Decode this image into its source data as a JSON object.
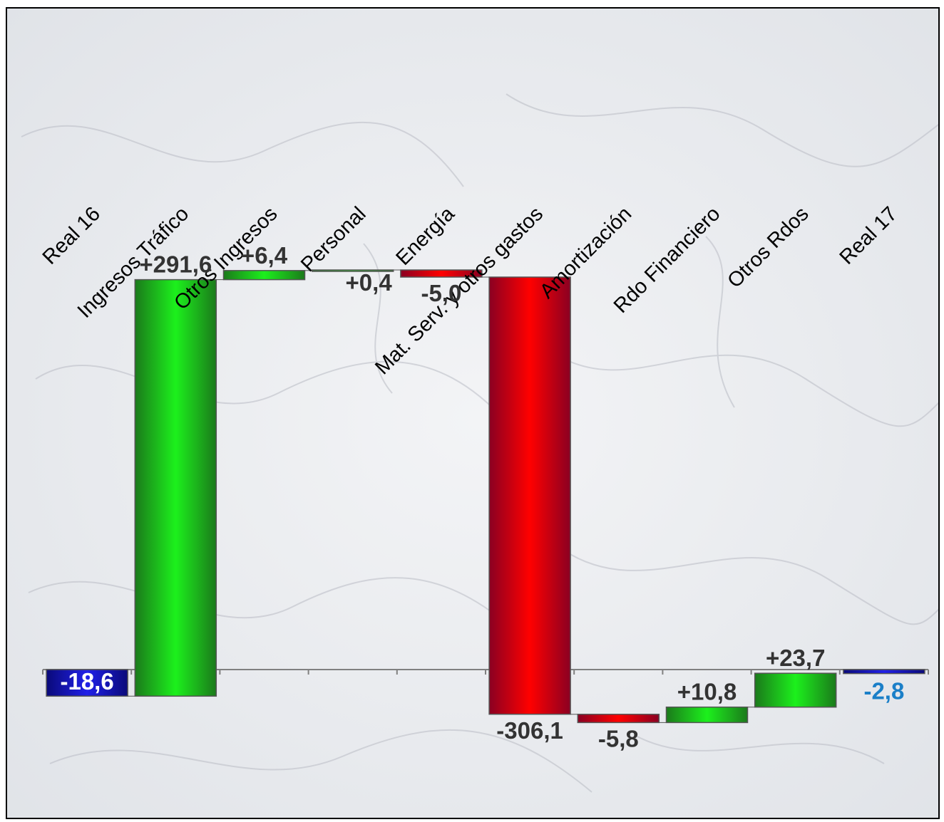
{
  "chart_data": {
    "type": "bar",
    "subtype": "waterfall",
    "title": "",
    "xlabel": "",
    "ylabel": "",
    "grid": false,
    "legend": "none",
    "categories": [
      "Real 16",
      "Ingresos Tráfico",
      "Otros Ingresos",
      "Personal",
      "Energía",
      "Mat. Serv. y otros gastos",
      "Amortización",
      "Rdo Financiero",
      "Otros Rdos",
      "Real 17"
    ],
    "values": [
      -18.6,
      291.6,
      6.4,
      0.4,
      -5.0,
      -306.1,
      -5.8,
      10.8,
      23.7,
      -2.8
    ],
    "value_labels": [
      "-18,6",
      "+291,6",
      "+6,4",
      "+0,4",
      "-5,0",
      "-306,1",
      "-5,8",
      "+10,8",
      "+23,7",
      "-2,8"
    ],
    "bar_kinds": [
      "total",
      "increase",
      "increase",
      "increase",
      "decrease",
      "decrease",
      "decrease",
      "increase",
      "increase",
      "total"
    ],
    "colors": {
      "total": "#1010b0",
      "increase": "#10c010",
      "decrease": "#d8001c",
      "label_dark": "#333333",
      "label_total_light": "#ffffff",
      "label_total_blue": "#1a7fc8",
      "axis": "#808080",
      "background": "#eceef2"
    }
  }
}
